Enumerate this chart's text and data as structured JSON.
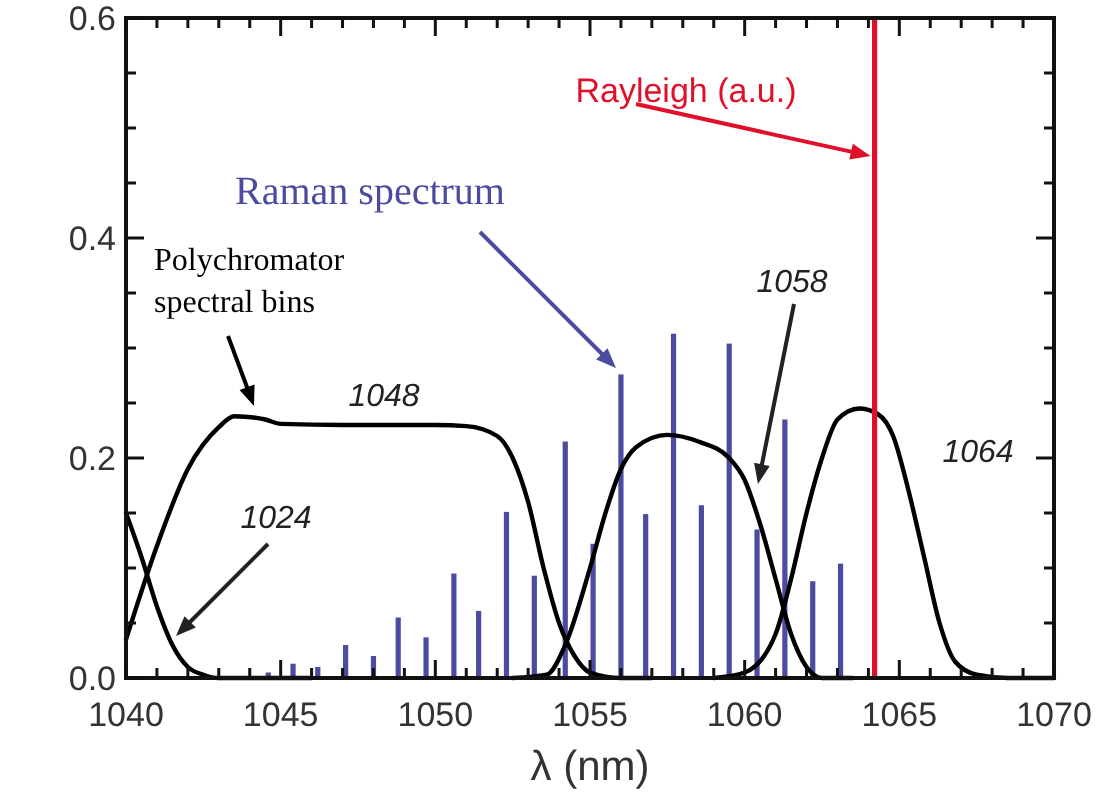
{
  "chart_data": {
    "type": "line",
    "xlabel": "λ (nm)",
    "xlim": [
      1040,
      1070
    ],
    "xticks": [
      1040,
      {
        "value": 1041,
        "label": null
      },
      {
        "value": 1042,
        "label": null
      },
      {
        "value": 1043,
        "label": null
      },
      {
        "value": 1044,
        "label": null
      },
      1045,
      {
        "value": 1046,
        "label": null
      },
      {
        "value": 1047,
        "label": null
      },
      {
        "value": 1048,
        "label": null
      },
      {
        "value": 1049,
        "label": null
      },
      1050,
      {
        "value": 1051,
        "label": null
      },
      {
        "value": 1052,
        "label": null
      },
      {
        "value": 1053,
        "label": null
      },
      {
        "value": 1054,
        "label": null
      },
      1055,
      {
        "value": 1056,
        "label": null
      },
      {
        "value": 1057,
        "label": null
      },
      {
        "value": 1058,
        "label": null
      },
      {
        "value": 1059,
        "label": null
      },
      1060,
      {
        "value": 1061,
        "label": null
      },
      {
        "value": 1062,
        "label": null
      },
      {
        "value": 1063,
        "label": null
      },
      {
        "value": 1064,
        "label": null
      },
      1065,
      {
        "value": 1066,
        "label": null
      },
      {
        "value": 1067,
        "label": null
      },
      {
        "value": 1068,
        "label": null
      },
      {
        "value": 1069,
        "label": null
      },
      1070
    ],
    "ylim": [
      0,
      0.6
    ],
    "yticks": [
      {
        "value": 0,
        "label": "0.0"
      },
      {
        "value": 0.05,
        "label": null
      },
      {
        "value": 0.1,
        "label": null
      },
      {
        "value": 0.15,
        "label": null
      },
      {
        "value": 0.2,
        "label": "0.2"
      },
      {
        "value": 0.25,
        "label": null
      },
      {
        "value": 0.3,
        "label": null
      },
      {
        "value": 0.35,
        "label": null
      },
      {
        "value": 0.4,
        "label": "0.4"
      },
      {
        "value": 0.45,
        "label": null
      },
      {
        "value": 0.5,
        "label": null
      },
      {
        "value": 0.55,
        "label": null
      },
      {
        "value": 0.6,
        "label": "0.6"
      }
    ],
    "grid": false,
    "marker": "none",
    "line_style": "solid",
    "series": [
      {
        "name": "Raman spectrum",
        "type": "bar",
        "color": "#4b4ba0",
        "x": [
          1044.6,
          1045.4,
          1046.2,
          1047.1,
          1048.0,
          1048.8,
          1049.7,
          1050.6,
          1051.4,
          1052.3,
          1053.2,
          1054.2,
          1055.1,
          1056.0,
          1056.8,
          1057.7,
          1058.6,
          1059.5,
          1060.4,
          1061.3,
          1062.2,
          1063.1
        ],
        "values": [
          0.005,
          0.013,
          0.01,
          0.03,
          0.02,
          0.055,
          0.037,
          0.095,
          0.061,
          0.151,
          0.093,
          0.215,
          0.122,
          0.276,
          0.149,
          0.313,
          0.157,
          0.304,
          0.135,
          0.235,
          0.088,
          0.104
        ]
      },
      {
        "name": "1024",
        "color": "#000000",
        "x": [
          1040,
          1040.5,
          1041,
          1041.5,
          1042,
          1042.5,
          1043,
          1044,
          1046
        ],
        "values": [
          0.15,
          0.11,
          0.065,
          0.03,
          0.01,
          0.003,
          0,
          0,
          0
        ]
      },
      {
        "name": "1048",
        "color": "#000000",
        "x": [
          1040,
          1041,
          1042,
          1043,
          1043.5,
          1044.5,
          1045,
          1047,
          1050,
          1051,
          1052,
          1052.5,
          1053,
          1053.5,
          1054,
          1054.5,
          1055,
          1056,
          1057
        ],
        "values": [
          0.035,
          0.12,
          0.19,
          0.228,
          0.238,
          0.235,
          0.231,
          0.23,
          0.23,
          0.229,
          0.22,
          0.2,
          0.16,
          0.1,
          0.05,
          0.02,
          0.005,
          0,
          0
        ]
      },
      {
        "name": "1058",
        "color": "#000000",
        "x": [
          1052.5,
          1053.6,
          1054.2,
          1055,
          1055.5,
          1056,
          1056.5,
          1057.5,
          1058.5,
          1059.5,
          1060,
          1060.5,
          1061,
          1061.5,
          1062,
          1062.5,
          1063.5
        ],
        "values": [
          0,
          0.003,
          0.03,
          0.1,
          0.15,
          0.19,
          0.21,
          0.221,
          0.215,
          0.2,
          0.18,
          0.14,
          0.09,
          0.04,
          0.01,
          0,
          0
        ]
      },
      {
        "name": "1064",
        "color": "#000000",
        "x": [
          1059,
          1060,
          1061,
          1061.5,
          1062,
          1062.5,
          1063,
          1063.7,
          1064.3,
          1064.8,
          1065.3,
          1065.8,
          1066.3,
          1066.8,
          1067.5,
          1068.5,
          1070
        ],
        "values": [
          0,
          0.005,
          0.04,
          0.09,
          0.15,
          0.2,
          0.235,
          0.245,
          0.24,
          0.22,
          0.17,
          0.11,
          0.05,
          0.015,
          0.003,
          0,
          0
        ]
      }
    ],
    "ref_lines": [
      {
        "axis": "x",
        "value": 1064.2,
        "label": "Rayleigh (a.u.)",
        "color": "#e0102a",
        "line_style": "solid"
      }
    ],
    "annotations": [
      "Polychromator spectral bins"
    ]
  }
}
